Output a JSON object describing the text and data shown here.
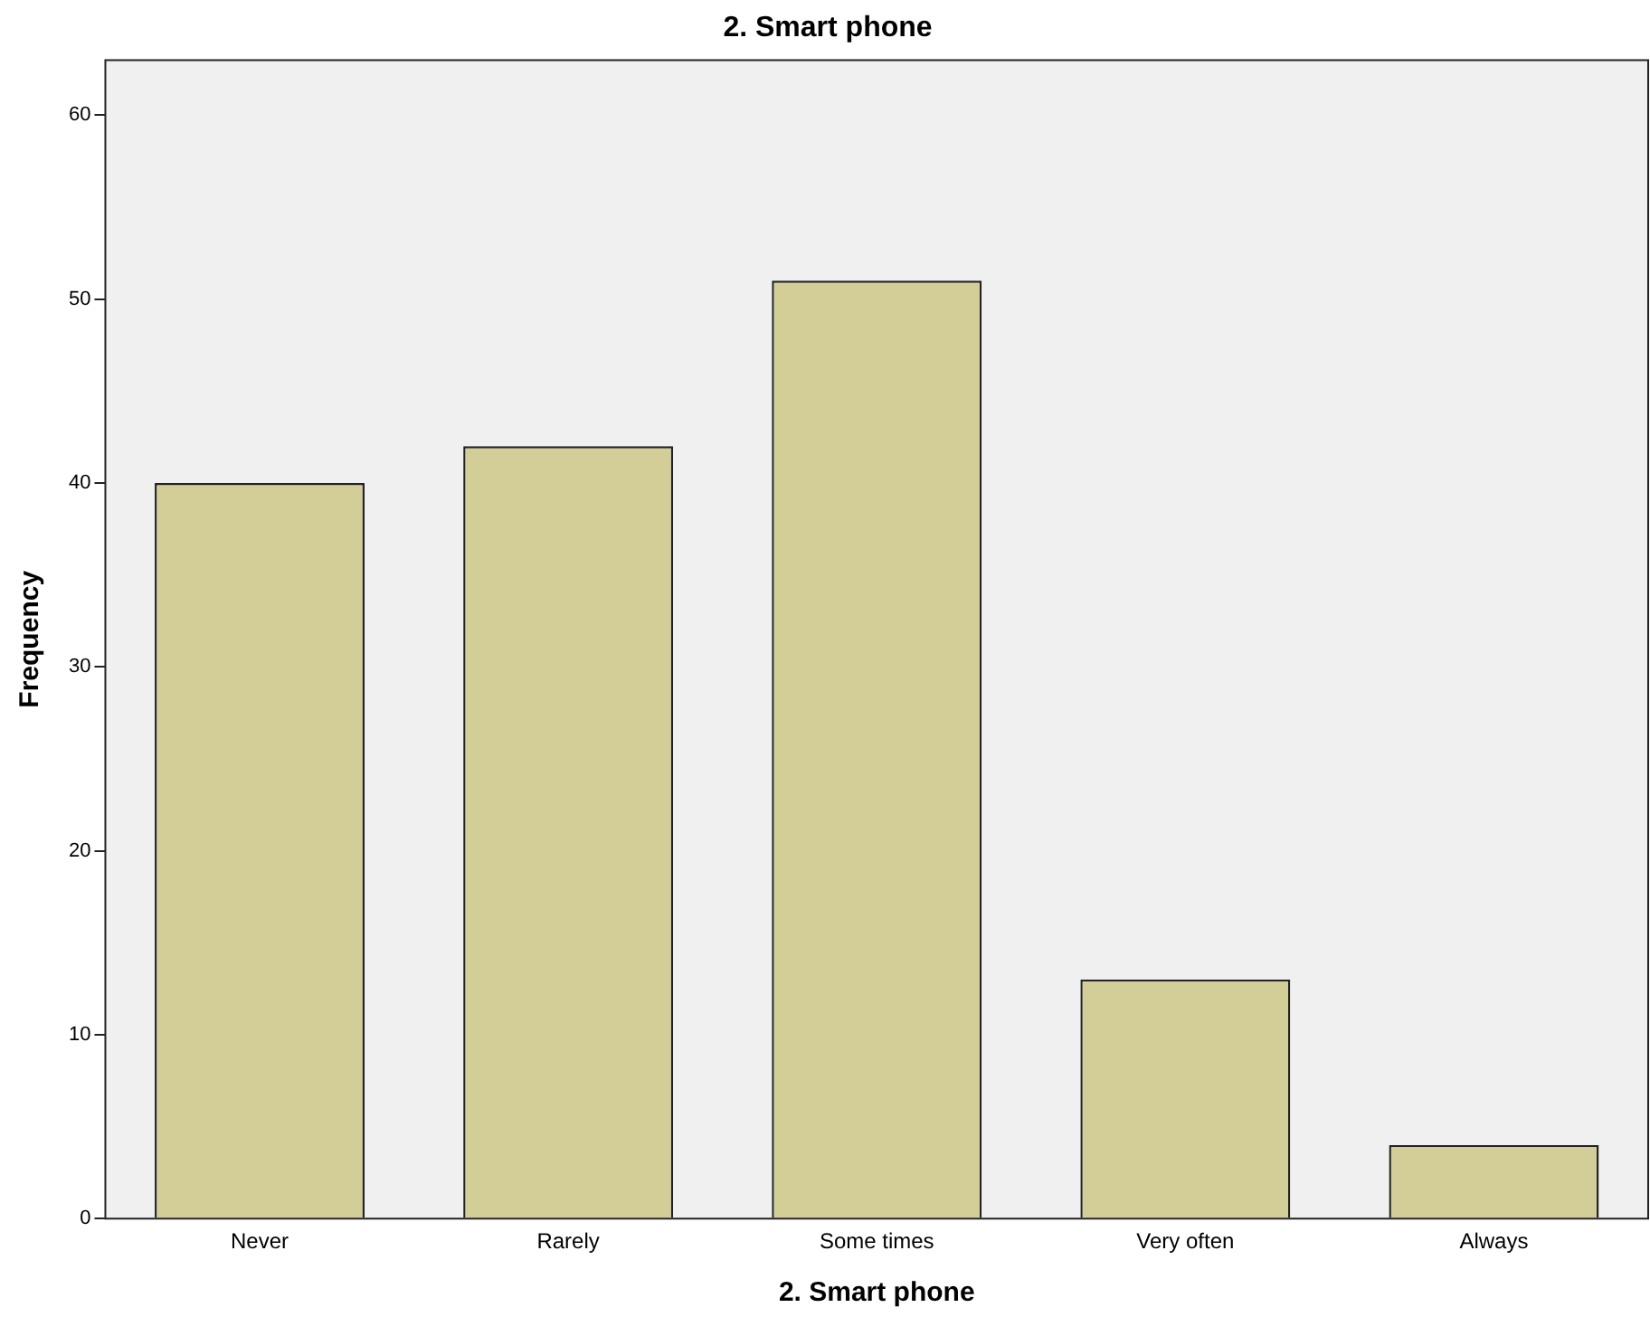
{
  "chart_data": {
    "type": "bar",
    "title": "2. Smart phone",
    "xlabel": "2. Smart phone",
    "ylabel": "Frequency",
    "categories": [
      "Never",
      "Rarely",
      "Some times",
      "Very often",
      "Always"
    ],
    "values": [
      40,
      42,
      51,
      13,
      4
    ],
    "color": "#d3ce97",
    "ylim": [
      0,
      63
    ],
    "yticks": [
      0,
      10,
      20,
      30,
      40,
      50,
      60
    ],
    "grid": false,
    "legend": false
  }
}
